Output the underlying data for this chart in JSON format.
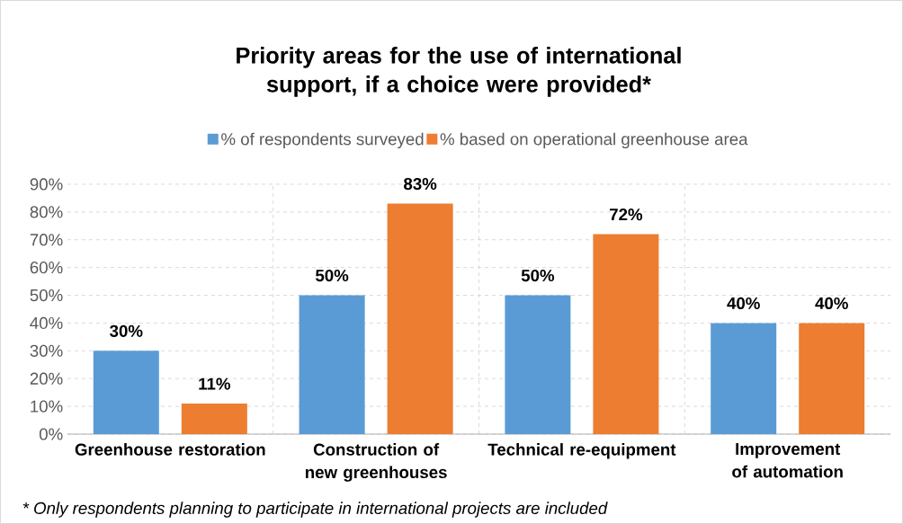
{
  "chart_data": {
    "type": "bar",
    "title": "Priority areas for the use of international support, if a choice were provided*",
    "categories": [
      "Greenhouse restoration",
      "Construction of new greenhouses",
      "Technical re-equipment",
      "Improvement of automation"
    ],
    "series": [
      {
        "name": "% of respondents surveyed",
        "color": "#5b9bd5",
        "values": [
          30,
          50,
          50,
          40
        ],
        "value_labels": [
          "30%",
          "50%",
          "50%",
          "40%"
        ]
      },
      {
        "name": "% based on operational greenhouse area",
        "color": "#ed7d31",
        "values": [
          11,
          83,
          72,
          40
        ],
        "value_labels": [
          "11%",
          "83%",
          "72%",
          "40%"
        ]
      }
    ],
    "ylim": [
      0,
      90
    ],
    "yticks": [
      {
        "value": 0,
        "label": "0%"
      },
      {
        "value": 10,
        "label": "10%"
      },
      {
        "value": 20,
        "label": "20%"
      },
      {
        "value": 30,
        "label": "30%"
      },
      {
        "value": 40,
        "label": "40%"
      },
      {
        "value": 50,
        "label": "50%"
      },
      {
        "value": 60,
        "label": "60%"
      },
      {
        "value": 70,
        "label": "70%"
      },
      {
        "value": 80,
        "label": "80%"
      },
      {
        "value": 90,
        "label": "90%"
      }
    ],
    "grid": true,
    "legend": "top",
    "annotations": [
      "* Only respondents planning to participate in international projects are included"
    ]
  }
}
